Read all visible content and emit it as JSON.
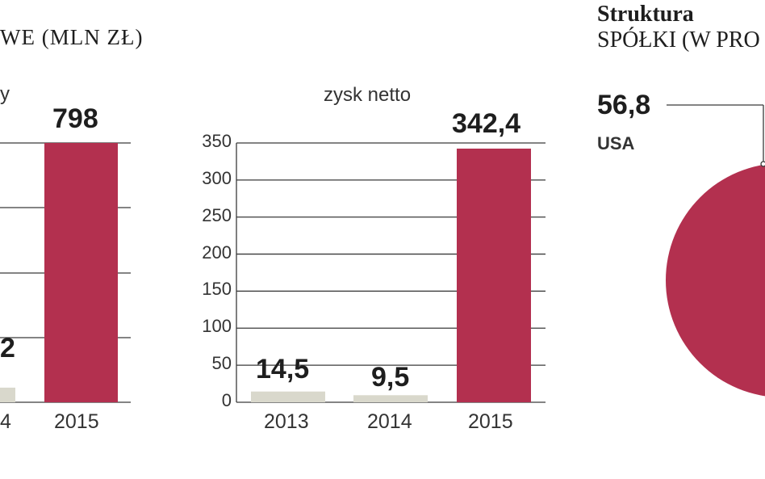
{
  "header": {
    "left_title": "WE (MLN ZŁ)",
    "right_title_line1": "Struktura",
    "right_title_line2": "SPÓŁKI (W PRO"
  },
  "colors": {
    "accent": "#b3304f",
    "muted": "#d9d8cc",
    "grid": "#3a3a3a"
  },
  "chart_data": [
    {
      "type": "bar",
      "title_fragment": "y",
      "categories": [
        "4",
        "2015"
      ],
      "values": [
        45,
        798
      ],
      "labels": [
        "2",
        "798"
      ],
      "colors": [
        "#d9d8cc",
        "#b3304f"
      ]
    },
    {
      "type": "bar",
      "title": "zysk netto",
      "categories": [
        "2013",
        "2014",
        "2015"
      ],
      "values": [
        14.5,
        9.5,
        342.4
      ],
      "labels": [
        "14,5",
        "9,5",
        "342,4"
      ],
      "ylim": [
        0,
        350
      ],
      "yticks": [
        "0",
        "50",
        "100",
        "150",
        "200",
        "250",
        "300",
        "350"
      ],
      "colors": [
        "#d9d8cc",
        "#d9d8cc",
        "#b3304f"
      ]
    },
    {
      "type": "pie",
      "slices": [
        {
          "label": "USA",
          "value": 56.8
        }
      ],
      "value_label": "56,8",
      "colors": [
        "#b3304f"
      ]
    }
  ]
}
